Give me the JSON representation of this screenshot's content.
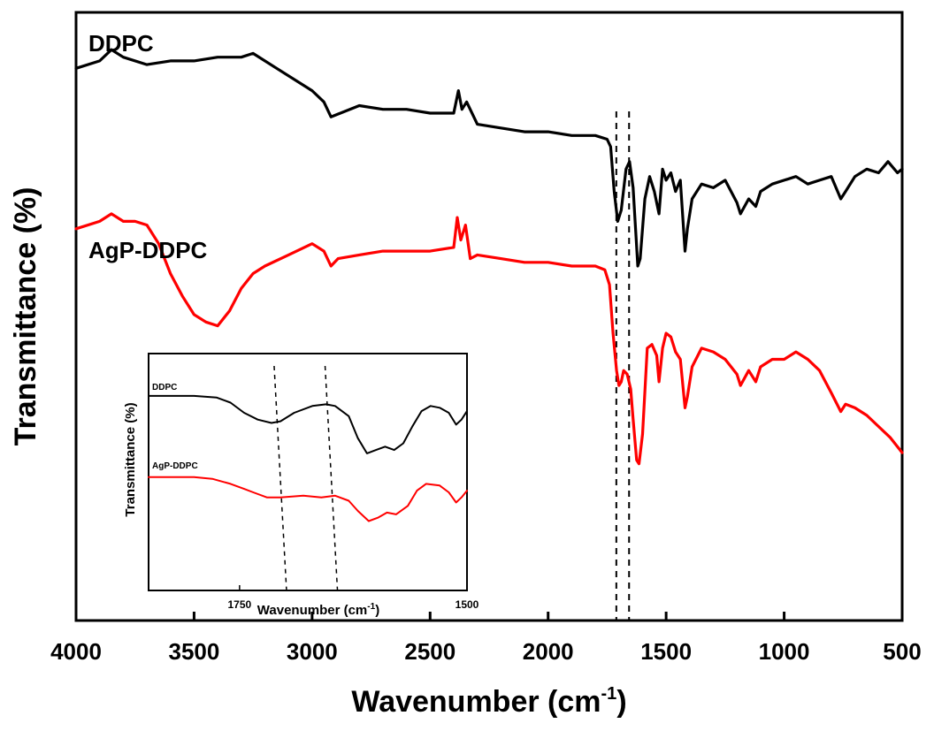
{
  "chart_data": [
    {
      "type": "line",
      "title": "",
      "xlabel_main": "Wavenumber (cm",
      "xlabel_sup": "-1",
      "xlabel_close": ")",
      "ylabel": "Transmittance (%)",
      "xlim": [
        4000,
        500
      ],
      "x_reversed": true,
      "grid": false,
      "xticks": [
        "4000",
        "3500",
        "3000",
        "2500",
        "2000",
        "1500",
        "1000",
        "500"
      ],
      "yticks": [],
      "reference_lines_x": [
        1711,
        1657
      ],
      "series": [
        {
          "name": "DDPC",
          "color": "#000000",
          "points": [
            [
              4000,
              0.93
            ],
            [
              3900,
              0.95
            ],
            [
              3850,
              0.98
            ],
            [
              3800,
              0.96
            ],
            [
              3700,
              0.94
            ],
            [
              3600,
              0.95
            ],
            [
              3500,
              0.95
            ],
            [
              3400,
              0.96
            ],
            [
              3300,
              0.96
            ],
            [
              3250,
              0.97
            ],
            [
              3150,
              0.93
            ],
            [
              3000,
              0.87
            ],
            [
              2950,
              0.84
            ],
            [
              2920,
              0.8
            ],
            [
              2880,
              0.81
            ],
            [
              2800,
              0.83
            ],
            [
              2700,
              0.82
            ],
            [
              2600,
              0.82
            ],
            [
              2500,
              0.81
            ],
            [
              2400,
              0.81
            ],
            [
              2380,
              0.87
            ],
            [
              2365,
              0.82
            ],
            [
              2345,
              0.84
            ],
            [
              2300,
              0.78
            ],
            [
              2200,
              0.77
            ],
            [
              2100,
              0.76
            ],
            [
              2000,
              0.76
            ],
            [
              1900,
              0.75
            ],
            [
              1800,
              0.75
            ],
            [
              1750,
              0.74
            ],
            [
              1735,
              0.72
            ],
            [
              1720,
              0.6
            ],
            [
              1705,
              0.52
            ],
            [
              1690,
              0.55
            ],
            [
              1670,
              0.66
            ],
            [
              1655,
              0.68
            ],
            [
              1640,
              0.61
            ],
            [
              1620,
              0.4
            ],
            [
              1610,
              0.42
            ],
            [
              1590,
              0.58
            ],
            [
              1570,
              0.64
            ],
            [
              1550,
              0.6
            ],
            [
              1530,
              0.54
            ],
            [
              1515,
              0.66
            ],
            [
              1500,
              0.63
            ],
            [
              1480,
              0.65
            ],
            [
              1460,
              0.6
            ],
            [
              1440,
              0.63
            ],
            [
              1420,
              0.44
            ],
            [
              1410,
              0.5
            ],
            [
              1390,
              0.58
            ],
            [
              1350,
              0.62
            ],
            [
              1300,
              0.61
            ],
            [
              1250,
              0.63
            ],
            [
              1200,
              0.57
            ],
            [
              1185,
              0.54
            ],
            [
              1150,
              0.58
            ],
            [
              1120,
              0.56
            ],
            [
              1100,
              0.6
            ],
            [
              1050,
              0.62
            ],
            [
              1000,
              0.63
            ],
            [
              950,
              0.64
            ],
            [
              900,
              0.62
            ],
            [
              850,
              0.63
            ],
            [
              800,
              0.64
            ],
            [
              760,
              0.58
            ],
            [
              740,
              0.6
            ],
            [
              700,
              0.64
            ],
            [
              650,
              0.66
            ],
            [
              600,
              0.65
            ],
            [
              560,
              0.68
            ],
            [
              520,
              0.65
            ],
            [
              500,
              0.66
            ]
          ]
        },
        {
          "name": "AgP-DDPC",
          "color": "#ff0000",
          "points": [
            [
              4000,
              0.5
            ],
            [
              3900,
              0.52
            ],
            [
              3850,
              0.54
            ],
            [
              3800,
              0.52
            ],
            [
              3750,
              0.52
            ],
            [
              3700,
              0.51
            ],
            [
              3650,
              0.46
            ],
            [
              3600,
              0.38
            ],
            [
              3550,
              0.32
            ],
            [
              3500,
              0.27
            ],
            [
              3450,
              0.25
            ],
            [
              3400,
              0.24
            ],
            [
              3350,
              0.28
            ],
            [
              3300,
              0.34
            ],
            [
              3250,
              0.38
            ],
            [
              3200,
              0.4
            ],
            [
              3100,
              0.43
            ],
            [
              3000,
              0.46
            ],
            [
              2950,
              0.44
            ],
            [
              2920,
              0.4
            ],
            [
              2890,
              0.42
            ],
            [
              2800,
              0.43
            ],
            [
              2700,
              0.44
            ],
            [
              2600,
              0.44
            ],
            [
              2500,
              0.44
            ],
            [
              2400,
              0.45
            ],
            [
              2385,
              0.53
            ],
            [
              2370,
              0.47
            ],
            [
              2350,
              0.51
            ],
            [
              2330,
              0.42
            ],
            [
              2300,
              0.43
            ],
            [
              2200,
              0.42
            ],
            [
              2100,
              0.41
            ],
            [
              2000,
              0.41
            ],
            [
              1900,
              0.4
            ],
            [
              1800,
              0.4
            ],
            [
              1760,
              0.39
            ],
            [
              1740,
              0.35
            ],
            [
              1725,
              0.22
            ],
            [
              1710,
              0.12
            ],
            [
              1700,
              0.08
            ],
            [
              1690,
              0.09
            ],
            [
              1680,
              0.12
            ],
            [
              1665,
              0.11
            ],
            [
              1650,
              0.07
            ],
            [
              1640,
              -0.01
            ],
            [
              1625,
              -0.12
            ],
            [
              1615,
              -0.13
            ],
            [
              1600,
              -0.05
            ],
            [
              1580,
              0.18
            ],
            [
              1560,
              0.19
            ],
            [
              1540,
              0.16
            ],
            [
              1530,
              0.09
            ],
            [
              1515,
              0.18
            ],
            [
              1500,
              0.22
            ],
            [
              1480,
              0.21
            ],
            [
              1460,
              0.17
            ],
            [
              1440,
              0.15
            ],
            [
              1420,
              0.02
            ],
            [
              1410,
              0.05
            ],
            [
              1390,
              0.13
            ],
            [
              1350,
              0.18
            ],
            [
              1300,
              0.17
            ],
            [
              1250,
              0.15
            ],
            [
              1200,
              0.11
            ],
            [
              1185,
              0.08
            ],
            [
              1150,
              0.12
            ],
            [
              1120,
              0.09
            ],
            [
              1100,
              0.13
            ],
            [
              1050,
              0.15
            ],
            [
              1000,
              0.15
            ],
            [
              950,
              0.17
            ],
            [
              900,
              0.15
            ],
            [
              850,
              0.12
            ],
            [
              800,
              0.06
            ],
            [
              760,
              0.01
            ],
            [
              740,
              0.03
            ],
            [
              700,
              0.02
            ],
            [
              650,
              0.0
            ],
            [
              600,
              -0.03
            ],
            [
              550,
              -0.06
            ],
            [
              500,
              -0.1
            ]
          ]
        }
      ],
      "series_labels": [
        "DDPC",
        "AgP-DDPC"
      ]
    },
    {
      "type": "line",
      "title": "",
      "xlabel_main": "Wavenumber (cm",
      "xlabel_sup": "-1",
      "xlabel_close": ")",
      "ylabel": "Transmittance (%)",
      "xlim": [
        1850,
        1500
      ],
      "x_reversed": true,
      "grid": false,
      "xticks": [
        "1750",
        "1500"
      ],
      "reference_lines_x": [
        1712,
        1656
      ],
      "series": [
        {
          "name": "DDPC",
          "color": "#000000",
          "points": [
            [
              1850,
              0.8
            ],
            [
              1800,
              0.8
            ],
            [
              1775,
              0.79
            ],
            [
              1760,
              0.76
            ],
            [
              1745,
              0.7
            ],
            [
              1730,
              0.66
            ],
            [
              1715,
              0.64
            ],
            [
              1705,
              0.65
            ],
            [
              1690,
              0.7
            ],
            [
              1670,
              0.74
            ],
            [
              1655,
              0.75
            ],
            [
              1645,
              0.74
            ],
            [
              1630,
              0.68
            ],
            [
              1620,
              0.55
            ],
            [
              1610,
              0.46
            ],
            [
              1600,
              0.48
            ],
            [
              1590,
              0.5
            ],
            [
              1580,
              0.48
            ],
            [
              1570,
              0.52
            ],
            [
              1560,
              0.62
            ],
            [
              1550,
              0.71
            ],
            [
              1540,
              0.74
            ],
            [
              1530,
              0.73
            ],
            [
              1520,
              0.7
            ],
            [
              1512,
              0.63
            ],
            [
              1506,
              0.66
            ],
            [
              1500,
              0.71
            ]
          ]
        },
        {
          "name": "AgP-DDPC",
          "color": "#ff0000",
          "points": [
            [
              1850,
              0.32
            ],
            [
              1800,
              0.32
            ],
            [
              1780,
              0.31
            ],
            [
              1760,
              0.28
            ],
            [
              1745,
              0.25
            ],
            [
              1735,
              0.23
            ],
            [
              1720,
              0.2
            ],
            [
              1705,
              0.2
            ],
            [
              1680,
              0.21
            ],
            [
              1660,
              0.2
            ],
            [
              1645,
              0.21
            ],
            [
              1630,
              0.18
            ],
            [
              1620,
              0.12
            ],
            [
              1608,
              0.06
            ],
            [
              1598,
              0.08
            ],
            [
              1588,
              0.11
            ],
            [
              1578,
              0.1
            ],
            [
              1565,
              0.15
            ],
            [
              1555,
              0.24
            ],
            [
              1545,
              0.28
            ],
            [
              1530,
              0.27
            ],
            [
              1520,
              0.23
            ],
            [
              1512,
              0.17
            ],
            [
              1506,
              0.2
            ],
            [
              1500,
              0.24
            ]
          ]
        }
      ],
      "series_labels": [
        "DDPC",
        "AgP-DDPC"
      ]
    }
  ]
}
